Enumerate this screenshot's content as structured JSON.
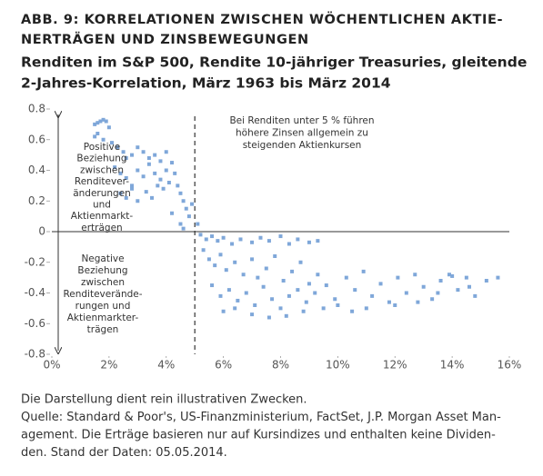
{
  "chart_data": {
    "type": "scatter",
    "title": [
      "ABB. 9: KORRELATIONEN ZWISCHEN WÖCHENTLICHEN AKTIE-",
      "NERTRÄGEN UND ZINSBEWEGUNGEN"
    ],
    "subtitle": [
      "Renditen im S&P 500, Rendite 10-jähriger Treasuries, gleitende",
      "2-Jahres-Korrelation, März 1963 bis März 2014"
    ],
    "annotations": {
      "right": [
        "Bei Renditen unter 5 % führen",
        "höhere Zinsen allgemein zu",
        "steigenden Aktienkursen"
      ],
      "positive": [
        "Positive",
        "Beziehung",
        "zwischen",
        "Renditever-",
        "änderungen",
        "und",
        "Aktienmarkt-",
        "erträgen"
      ],
      "negative": [
        "Negative",
        "Beziehung",
        "zwischen",
        "Renditeverände-",
        "rungen und",
        "Aktienmarkter-",
        "trägen"
      ]
    },
    "notes": [
      "Die Darstellung dient rein illustrativen Zwecken.",
      "Quelle: Standard & Poor's, US-Finanzministerium, FactSet, J.P. Morgan Asset Man-",
      "agement. Die Erträge basieren nur auf Kursindizes und enthalten keine Dividen-",
      "den. Stand der Daten: 05.05.2014."
    ],
    "color": "#7fa7d9",
    "threshold": 5,
    "xlim": [
      0,
      16
    ],
    "xticks": [
      {
        "value": 0,
        "label": "0%"
      },
      {
        "value": 2,
        "label": "2%"
      },
      {
        "value": 4,
        "label": "4%"
      },
      {
        "value": 6,
        "label": "6%"
      },
      {
        "value": 8,
        "label": "8%"
      },
      {
        "value": 10,
        "label": "10%"
      },
      {
        "value": 12,
        "label": "12%"
      },
      {
        "value": 14,
        "label": "14%"
      },
      {
        "value": 16,
        "label": "16%"
      }
    ],
    "ylim": [
      -0.8,
      0.8
    ],
    "yticks": [
      0.8,
      0.6,
      0.4,
      0.2,
      0,
      -0.2,
      -0.4,
      -0.6,
      -0.8
    ],
    "x": [
      1.5,
      1.6,
      1.7,
      1.8,
      1.9,
      1.6,
      1.8,
      2.0,
      1.5,
      2.1,
      2.3,
      2.5,
      2.6,
      2.8,
      3.0,
      3.2,
      3.4,
      3.6,
      3.8,
      4.0,
      2.2,
      2.4,
      2.6,
      2.8,
      3.0,
      3.2,
      3.4,
      3.6,
      3.8,
      4.0,
      2.4,
      2.6,
      2.8,
      3.0,
      3.3,
      3.5,
      3.7,
      3.9,
      4.1,
      4.2,
      4.3,
      4.4,
      4.5,
      4.6,
      4.7,
      4.8,
      4.5,
      4.6,
      4.2,
      4.9,
      5.1,
      5.2,
      5.4,
      5.6,
      5.8,
      6.0,
      6.3,
      6.6,
      7.0,
      7.3,
      7.6,
      8.0,
      8.3,
      8.6,
      9.0,
      9.3,
      5.3,
      5.5,
      5.7,
      5.9,
      6.1,
      6.4,
      6.7,
      7.0,
      7.2,
      7.5,
      7.8,
      8.1,
      8.4,
      8.7,
      9.0,
      9.3,
      5.6,
      5.9,
      6.2,
      6.5,
      6.8,
      7.1,
      7.4,
      7.7,
      8.0,
      8.3,
      8.6,
      8.9,
      9.2,
      9.6,
      9.9,
      6.0,
      6.4,
      7.0,
      7.6,
      8.2,
      8.8,
      9.5,
      10.0,
      10.3,
      10.6,
      10.9,
      11.2,
      11.5,
      11.8,
      12.1,
      12.4,
      12.7,
      13.0,
      13.3,
      13.6,
      13.9,
      14.2,
      14.5,
      14.8,
      15.2,
      15.6,
      10.5,
      11.0,
      12.0,
      12.8,
      13.5,
      14.0,
      14.6
    ],
    "values": [
      0.7,
      0.71,
      0.72,
      0.73,
      0.72,
      0.64,
      0.6,
      0.68,
      0.62,
      0.58,
      0.55,
      0.52,
      0.48,
      0.5,
      0.55,
      0.52,
      0.48,
      0.5,
      0.46,
      0.52,
      0.42,
      0.38,
      0.35,
      0.3,
      0.4,
      0.36,
      0.44,
      0.38,
      0.34,
      0.4,
      0.25,
      0.22,
      0.28,
      0.2,
      0.26,
      0.22,
      0.3,
      0.28,
      0.32,
      0.45,
      0.38,
      0.3,
      0.25,
      0.2,
      0.15,
      0.1,
      0.05,
      0.02,
      0.12,
      0.18,
      0.05,
      -0.02,
      -0.05,
      -0.03,
      -0.06,
      -0.04,
      -0.08,
      -0.05,
      -0.07,
      -0.04,
      -0.06,
      -0.03,
      -0.08,
      -0.05,
      -0.07,
      -0.06,
      -0.12,
      -0.18,
      -0.22,
      -0.15,
      -0.25,
      -0.2,
      -0.28,
      -0.18,
      -0.3,
      -0.24,
      -0.16,
      -0.32,
      -0.26,
      -0.2,
      -0.34,
      -0.28,
      -0.35,
      -0.42,
      -0.38,
      -0.45,
      -0.4,
      -0.48,
      -0.36,
      -0.44,
      -0.5,
      -0.42,
      -0.38,
      -0.46,
      -0.4,
      -0.35,
      -0.44,
      -0.52,
      -0.5,
      -0.54,
      -0.56,
      -0.55,
      -0.52,
      -0.5,
      -0.48,
      -0.3,
      -0.38,
      -0.26,
      -0.42,
      -0.34,
      -0.46,
      -0.3,
      -0.4,
      -0.28,
      -0.36,
      -0.44,
      -0.32,
      -0.28,
      -0.38,
      -0.3,
      -0.42,
      -0.32,
      -0.3,
      -0.52,
      -0.5,
      -0.48,
      -0.46,
      -0.4,
      -0.29,
      -0.36
    ]
  }
}
